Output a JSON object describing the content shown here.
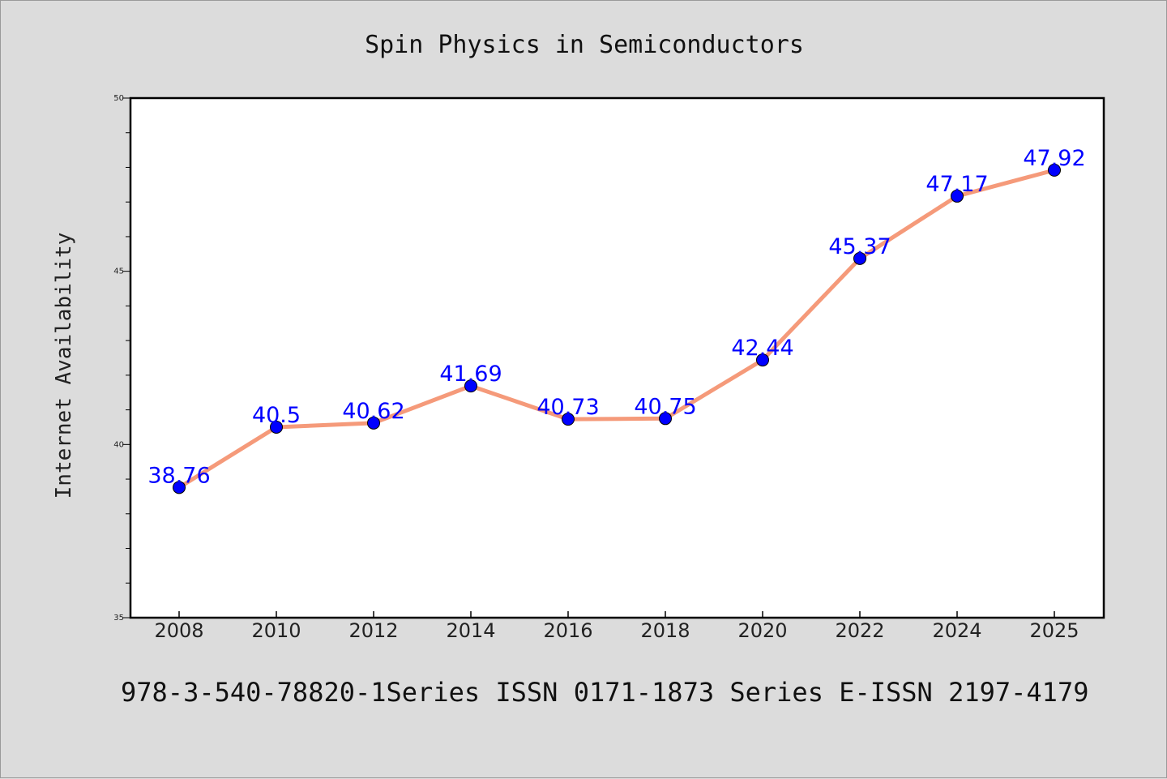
{
  "chart_data": {
    "type": "line",
    "title": "Spin Physics in Semiconductors",
    "xlabel": "",
    "ylabel": "Internet Availability",
    "categories": [
      "2008",
      "2010",
      "2012",
      "2014",
      "2016",
      "2018",
      "2020",
      "2022",
      "2024",
      "2025"
    ],
    "series": [
      {
        "values": [
          38.76,
          40.5,
          40.62,
          41.69,
          40.73,
          40.75,
          42.44,
          45.37,
          47.17,
          47.92
        ]
      }
    ],
    "data_labels": [
      "38.76",
      "40.5",
      "40.62",
      "41.69",
      "40.73",
      "40.75",
      "42.44",
      "45.37",
      "47.17",
      "47.92"
    ],
    "ylim": [
      35,
      50
    ],
    "y_ticks": [
      "35",
      "40",
      "45",
      "50"
    ],
    "grid": false,
    "line_color": "#f59a7a",
    "marker_color": "#0000ff",
    "label_color": "#0000ff",
    "background": "#dcdcdc",
    "plot_background": "#ffffff"
  },
  "footer": {
    "text": "978-3-540-78820-1Series ISSN 0171-1873 Series E-ISSN 2197-4179"
  }
}
